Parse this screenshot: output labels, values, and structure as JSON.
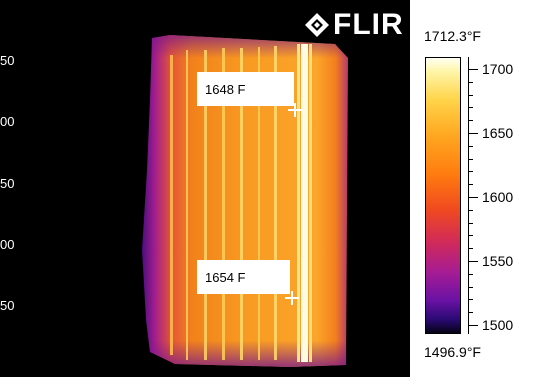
{
  "image": {
    "brand": "FLIR",
    "y_axis_labels": [
      "50",
      "00",
      "50",
      "00",
      "50"
    ]
  },
  "measurements": [
    {
      "label": "1648 F"
    },
    {
      "label": "1654 F"
    }
  ],
  "scale": {
    "max_label": "1712.3°F",
    "min_label": "1496.9°F",
    "unit": "°F",
    "max_value": 1712.3,
    "min_value": 1496.9,
    "ticks": [
      "1700",
      "1650",
      "1600",
      "1550",
      "1500"
    ],
    "palette": "iron"
  }
}
